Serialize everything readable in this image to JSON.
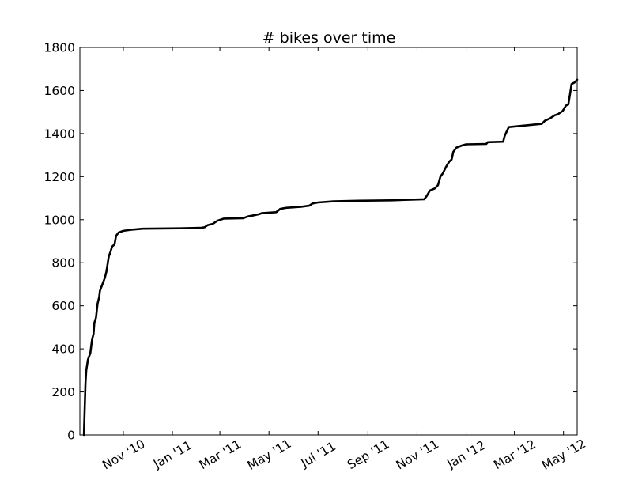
{
  "chart_data": {
    "type": "line",
    "title": "# bikes over time",
    "xlabel": "",
    "ylabel": "",
    "x_range": [
      "2010-09-08",
      "2012-05-18"
    ],
    "ylim": [
      0,
      1800
    ],
    "grid": false,
    "legend": "none",
    "line_color": "#000000",
    "x_ticks": [
      {
        "date": "2010-11-01",
        "label": "Nov '10"
      },
      {
        "date": "2011-01-01",
        "label": "Jan '11"
      },
      {
        "date": "2011-03-01",
        "label": "Mar '11"
      },
      {
        "date": "2011-05-01",
        "label": "May '11"
      },
      {
        "date": "2011-07-01",
        "label": "Jul '11"
      },
      {
        "date": "2011-09-01",
        "label": "Sep '11"
      },
      {
        "date": "2011-11-01",
        "label": "Nov '11"
      },
      {
        "date": "2012-01-01",
        "label": "Jan '12"
      },
      {
        "date": "2012-03-01",
        "label": "Mar '12"
      },
      {
        "date": "2012-05-01",
        "label": "May '12"
      }
    ],
    "y_ticks": [
      0,
      200,
      400,
      600,
      800,
      1000,
      1200,
      1400,
      1600,
      1800
    ],
    "series": [
      {
        "points": [
          [
            "2010-09-13",
            0
          ],
          [
            "2010-09-14",
            120
          ],
          [
            "2010-09-15",
            240
          ],
          [
            "2010-09-16",
            300
          ],
          [
            "2010-09-18",
            350
          ],
          [
            "2010-09-21",
            380
          ],
          [
            "2010-09-23",
            440
          ],
          [
            "2010-09-25",
            470
          ],
          [
            "2010-09-26",
            520
          ],
          [
            "2010-09-28",
            545
          ],
          [
            "2010-09-30",
            610
          ],
          [
            "2010-10-02",
            640
          ],
          [
            "2010-10-03",
            670
          ],
          [
            "2010-10-06",
            700
          ],
          [
            "2010-10-09",
            730
          ],
          [
            "2010-10-11",
            760
          ],
          [
            "2010-10-14",
            830
          ],
          [
            "2010-10-16",
            850
          ],
          [
            "2010-10-18",
            875
          ],
          [
            "2010-10-21",
            885
          ],
          [
            "2010-10-23",
            925
          ],
          [
            "2010-10-26",
            940
          ],
          [
            "2010-11-01",
            948
          ],
          [
            "2010-11-10",
            953
          ],
          [
            "2010-11-25",
            958
          ],
          [
            "2011-01-10",
            960
          ],
          [
            "2011-02-06",
            962
          ],
          [
            "2011-02-10",
            965
          ],
          [
            "2011-02-14",
            975
          ],
          [
            "2011-02-20",
            980
          ],
          [
            "2011-02-26",
            995
          ],
          [
            "2011-03-06",
            1005
          ],
          [
            "2011-03-30",
            1007
          ],
          [
            "2011-04-05",
            1015
          ],
          [
            "2011-04-12",
            1020
          ],
          [
            "2011-04-18",
            1025
          ],
          [
            "2011-04-22",
            1030
          ],
          [
            "2011-05-10",
            1035
          ],
          [
            "2011-05-15",
            1050
          ],
          [
            "2011-05-22",
            1055
          ],
          [
            "2011-06-10",
            1060
          ],
          [
            "2011-06-20",
            1065
          ],
          [
            "2011-06-24",
            1075
          ],
          [
            "2011-07-01",
            1080
          ],
          [
            "2011-07-20",
            1085
          ],
          [
            "2011-08-20",
            1088
          ],
          [
            "2011-09-30",
            1090
          ],
          [
            "2011-11-10",
            1095
          ],
          [
            "2011-11-13",
            1110
          ],
          [
            "2011-11-17",
            1135
          ],
          [
            "2011-11-23",
            1145
          ],
          [
            "2011-11-27",
            1160
          ],
          [
            "2011-11-30",
            1200
          ],
          [
            "2011-12-03",
            1215
          ],
          [
            "2011-12-07",
            1245
          ],
          [
            "2011-12-11",
            1270
          ],
          [
            "2011-12-14",
            1280
          ],
          [
            "2011-12-16",
            1315
          ],
          [
            "2011-12-20",
            1335
          ],
          [
            "2011-12-27",
            1345
          ],
          [
            "2012-01-01",
            1350
          ],
          [
            "2012-01-26",
            1352
          ],
          [
            "2012-01-28",
            1360
          ],
          [
            "2012-02-16",
            1362
          ],
          [
            "2012-02-18",
            1390
          ],
          [
            "2012-02-23",
            1430
          ],
          [
            "2012-04-04",
            1445
          ],
          [
            "2012-04-08",
            1460
          ],
          [
            "2012-04-14",
            1470
          ],
          [
            "2012-04-20",
            1485
          ],
          [
            "2012-04-24",
            1490
          ],
          [
            "2012-04-30",
            1505
          ],
          [
            "2012-05-04",
            1530
          ],
          [
            "2012-05-07",
            1535
          ],
          [
            "2012-05-09",
            1580
          ],
          [
            "2012-05-11",
            1630
          ],
          [
            "2012-05-15",
            1638
          ],
          [
            "2012-05-18",
            1650
          ]
        ]
      }
    ]
  }
}
